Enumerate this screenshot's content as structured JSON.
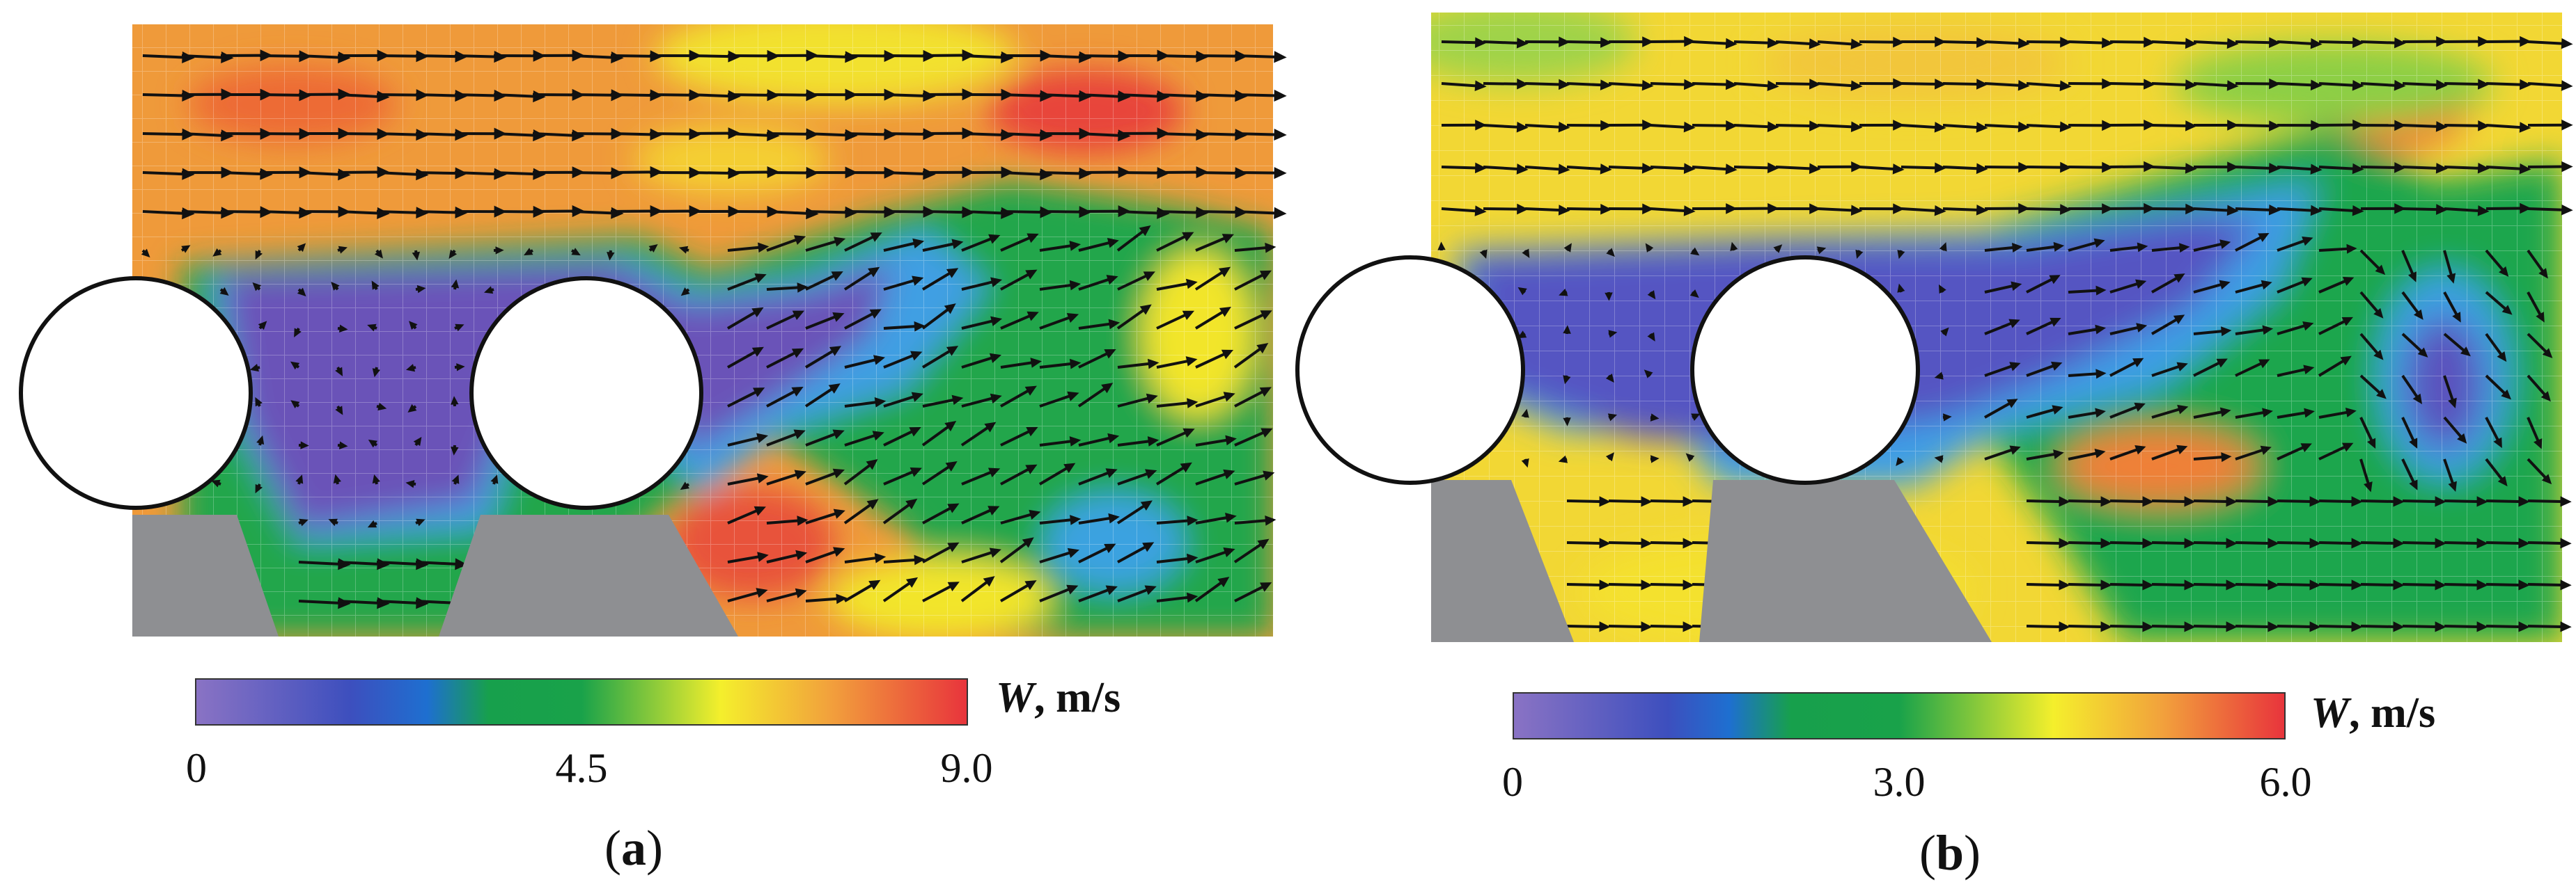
{
  "panels": [
    {
      "id": "a",
      "label": "a",
      "colorbar": {
        "quantity": "W",
        "unit": ", m/s",
        "ticks": [
          "0",
          "4.5",
          "9.0"
        ]
      },
      "palette": {
        "low": "#6a4fb3",
        "blue": "#3550c8",
        "green": "#1aa24a",
        "yellow": "#f2e52c",
        "orange": "#f29a3c",
        "red": "#e8383a"
      },
      "obstacles": {
        "cylinder_fill": "#ffffff",
        "cylinder_stroke": "#111111",
        "support_fill": "#8e8f92"
      }
    },
    {
      "id": "b",
      "label": "b",
      "colorbar": {
        "quantity": "W",
        "unit": ", m/s",
        "ticks": [
          "0",
          "3.0",
          "6.0"
        ]
      },
      "palette": {
        "low": "#6a4fb3",
        "blue": "#3550c8",
        "green": "#1aa24a",
        "yellow": "#f2e52c",
        "orange": "#f29a3c",
        "red": "#e8383a"
      },
      "obstacles": {
        "cylinder_fill": "#ffffff",
        "cylinder_stroke": "#111111",
        "support_fill": "#8e8f92"
      }
    }
  ]
}
